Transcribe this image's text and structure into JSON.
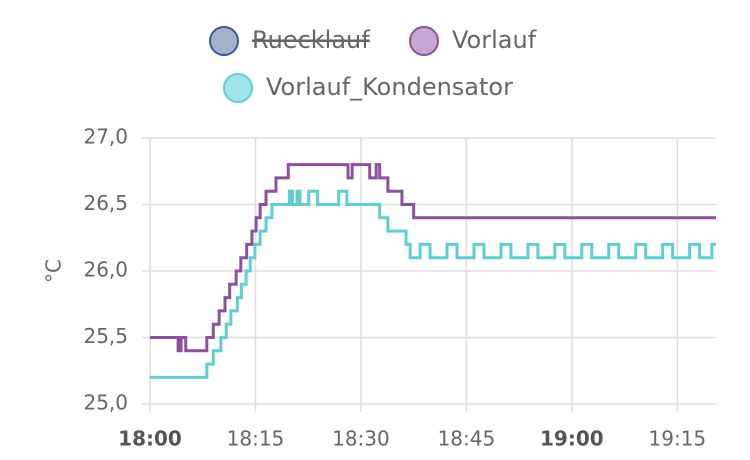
{
  "chart_data": {
    "type": "step-line",
    "y_label": "°C",
    "xlim": [
      "18:00:00",
      "19:20:30"
    ],
    "xticks": [
      {
        "value": "18:00:00",
        "label": "18:00"
      },
      {
        "value": "18:15:00",
        "label": "18:15"
      },
      {
        "value": "18:30:00",
        "label": "18:30"
      },
      {
        "value": "18:45:00",
        "label": "18:45"
      },
      {
        "value": "19:00:00",
        "label": "19:00"
      },
      {
        "value": "19:15:00",
        "label": "19:15"
      }
    ],
    "ylim": [
      25.0,
      27.0
    ],
    "yticks": [
      {
        "value": 25.0,
        "label": "25,0"
      },
      {
        "value": 25.5,
        "label": "25,5"
      },
      {
        "value": 26.0,
        "label": "26,0"
      },
      {
        "value": 26.5,
        "label": "26,5"
      },
      {
        "value": 27.0,
        "label": "27,0"
      }
    ],
    "grid": true,
    "series": [
      {
        "name": "Ruecklauf",
        "color": "#3b5a96",
        "fill": "#a3b3cb",
        "hidden": true,
        "x": [],
        "values": []
      },
      {
        "name": "Vorlauf",
        "color": "#8e4fa0",
        "fill": "#c4a8d2",
        "hidden": false,
        "x": [
          "18:00:00",
          "18:04:00",
          "18:04:25",
          "18:05:05",
          "18:08:05",
          "18:09:00",
          "18:09:50",
          "18:10:40",
          "18:11:20",
          "18:12:15",
          "18:12:55",
          "18:13:45",
          "18:14:30",
          "18:15:05",
          "18:15:40",
          "18:16:30",
          "18:17:55",
          "18:19:40",
          "18:28:10",
          "18:28:45",
          "18:31:15",
          "18:32:10",
          "18:32:40",
          "18:33:50",
          "18:35:50",
          "18:37:30",
          "19:20:30"
        ],
        "values": [
          25.5,
          25.4,
          25.5,
          25.4,
          25.5,
          25.6,
          25.7,
          25.8,
          25.9,
          26.0,
          26.1,
          26.2,
          26.3,
          26.4,
          26.5,
          26.6,
          26.7,
          26.8,
          26.7,
          26.8,
          26.7,
          26.8,
          26.7,
          26.6,
          26.5,
          26.4,
          26.4
        ]
      },
      {
        "name": "Vorlauf_Kondensator",
        "color": "#5ccfd4",
        "fill": "#9ee6e9",
        "hidden": false,
        "x": [
          "18:00:00",
          "18:08:05",
          "18:09:00",
          "18:10:05",
          "18:10:50",
          "18:11:30",
          "18:12:25",
          "18:13:00",
          "18:13:40",
          "18:14:15",
          "18:14:55",
          "18:15:40",
          "18:16:30",
          "18:17:20",
          "18:19:50",
          "18:20:15",
          "18:20:55",
          "18:21:20",
          "18:22:35",
          "18:23:50",
          "18:26:50",
          "18:28:00",
          "18:32:40",
          "18:33:50",
          "18:36:25",
          "18:37:00",
          "18:38:25",
          "18:39:50",
          "18:42:15",
          "18:43:40",
          "18:46:05",
          "18:47:30",
          "18:49:55",
          "18:51:20",
          "18:53:45",
          "18:55:10",
          "18:57:35",
          "18:59:00",
          "19:01:25",
          "19:02:50",
          "19:05:15",
          "19:06:40",
          "19:09:05",
          "19:10:30",
          "19:12:55",
          "19:14:20",
          "19:16:45",
          "19:18:10",
          "19:19:55",
          "19:20:30"
        ],
        "values": [
          25.2,
          25.3,
          25.4,
          25.5,
          25.6,
          25.7,
          25.8,
          25.9,
          26.0,
          26.1,
          26.2,
          26.3,
          26.4,
          26.5,
          26.6,
          26.5,
          26.6,
          26.5,
          26.6,
          26.5,
          26.6,
          26.5,
          26.4,
          26.3,
          26.2,
          26.1,
          26.2,
          26.1,
          26.2,
          26.1,
          26.2,
          26.1,
          26.2,
          26.1,
          26.2,
          26.1,
          26.2,
          26.1,
          26.2,
          26.1,
          26.2,
          26.1,
          26.2,
          26.1,
          26.2,
          26.1,
          26.2,
          26.1,
          26.2,
          26.2
        ]
      }
    ]
  }
}
